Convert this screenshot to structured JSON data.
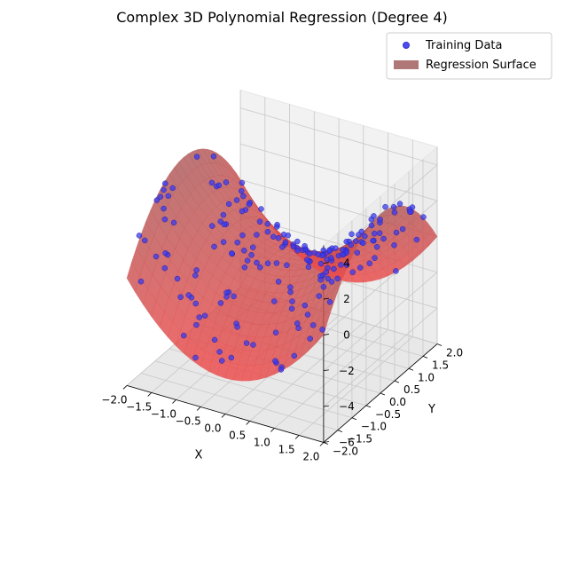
{
  "chart_data": {
    "type": "scatter3d+surface",
    "title": "Complex 3D Polynomial Regression (Degree 4)",
    "xlabel": "X",
    "ylabel": "Y",
    "zlabel": "",
    "xlim": [
      -2.0,
      2.0
    ],
    "ylim": [
      -2.0,
      2.0
    ],
    "zlim": [
      -6.0,
      5.0
    ],
    "x_ticks": [
      "−2.0",
      "−1.5",
      "−1.0",
      "−0.5",
      "0.0",
      "0.5",
      "1.0",
      "1.5",
      "2.0"
    ],
    "y_ticks": [
      "−2.0",
      "−1.5",
      "−1.0",
      "−0.5",
      "0.0",
      "0.5",
      "1.0",
      "1.5",
      "2.0"
    ],
    "z_ticks": [
      "−6",
      "−4",
      "−2",
      "0",
      "2",
      "4"
    ],
    "x_tick_values": [
      -2.0,
      -1.5,
      -1.0,
      -0.5,
      0.0,
      0.5,
      1.0,
      1.5,
      2.0
    ],
    "y_tick_values": [
      -2.0,
      -1.5,
      -1.0,
      -0.5,
      0.0,
      0.5,
      1.0,
      1.5,
      2.0
    ],
    "z_tick_values": [
      -6,
      -4,
      -2,
      0,
      2,
      4
    ],
    "surface_model": "z = x^2 - y^2 (approx. degree-4 fit)",
    "series": [
      {
        "name": "Training Data",
        "kind": "scatter",
        "color": "#0000ff",
        "n_points": 200
      },
      {
        "name": "Regression Surface",
        "kind": "surface",
        "color": "#b07777",
        "fill": "#ff0000"
      }
    ],
    "legend": {
      "position": "top-right",
      "entries": [
        {
          "label": "Training Data",
          "marker": "circle",
          "color": "#4b4bf0"
        },
        {
          "label": "Regression Surface",
          "marker": "patch",
          "color": "#b07777"
        }
      ]
    },
    "grid": true
  }
}
